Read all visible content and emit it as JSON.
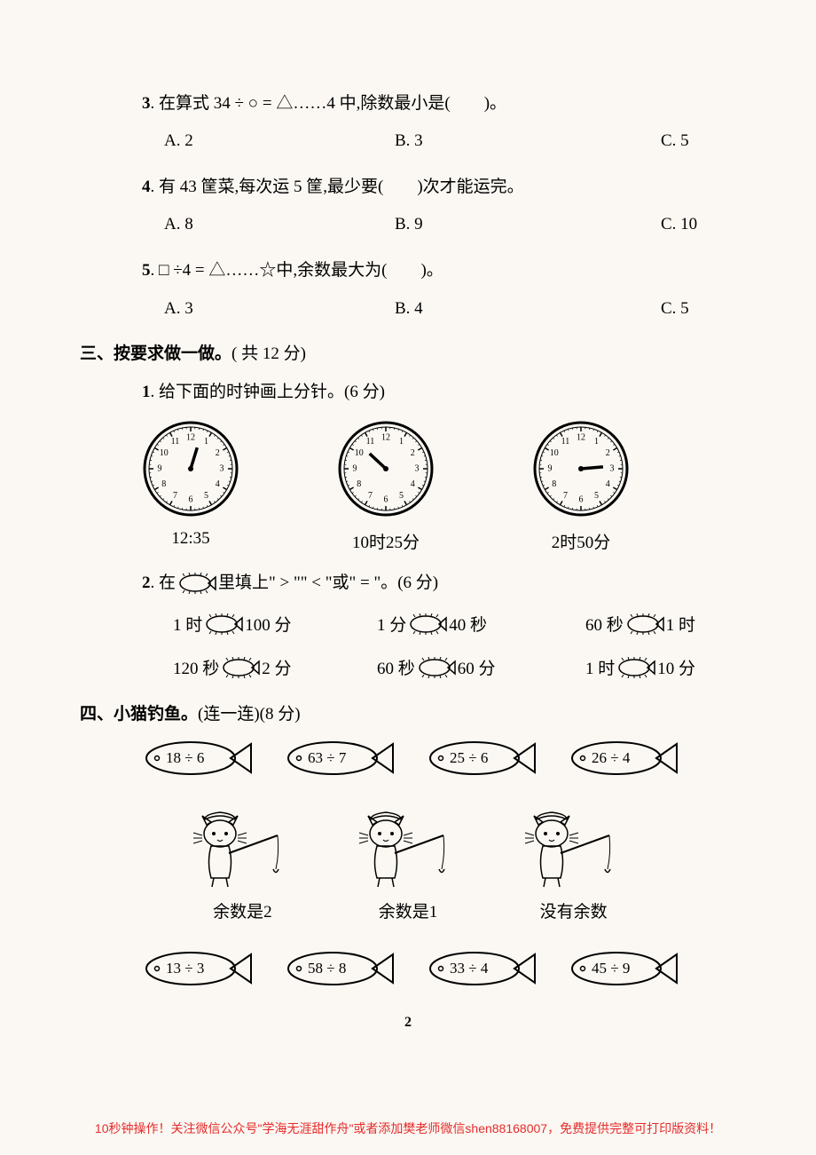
{
  "q3": {
    "num": "3",
    "text": ". 在算式 34 ÷ ○ = △……4 中,除数最小是(　　)。",
    "choices": [
      "A. 2",
      "B. 3",
      "C. 5"
    ]
  },
  "q4": {
    "num": "4",
    "text": ". 有 43 筐菜,每次运 5 筐,最少要(　　)次才能运完。",
    "choices": [
      "A. 8",
      "B. 9",
      "C. 10"
    ]
  },
  "q5": {
    "num": "5",
    "text": ". □ ÷4 = △……☆中,余数最大为(　　)。",
    "choices": [
      "A. 3",
      "B. 4",
      "C. 5"
    ]
  },
  "section3": {
    "title": "三、按要求做一做。",
    "points": "( 共 12 分)"
  },
  "s3q1": {
    "num": "1",
    "text": ". 给下面的时钟画上分针。(6 分)",
    "clocks": [
      {
        "label": "12:35",
        "hour_angle": 17
      },
      {
        "label": "10时25分",
        "hour_angle": -47
      },
      {
        "label": "2时50分",
        "hour_angle": 85
      }
    ]
  },
  "s3q2": {
    "num": "2",
    "prefix": ". 在",
    "suffix": "里填上\" > \"\" < \"或\" = \"。(6 分)",
    "rows": [
      [
        {
          "left": "1 时",
          "right": "100 分"
        },
        {
          "left": "1 分",
          "right": "40 秒"
        },
        {
          "left": "60 秒",
          "right": "1 时"
        }
      ],
      [
        {
          "left": "120 秒",
          "right": "2 分"
        },
        {
          "left": "60 秒",
          "right": "60 分"
        },
        {
          "left": "1 时",
          "right": "10 分"
        }
      ]
    ]
  },
  "section4": {
    "title": "四、小猫钓鱼。",
    "points": "(连一连)(8 分)"
  },
  "fish_top": [
    "18 ÷ 6",
    "63 ÷ 7",
    "25 ÷ 6",
    "26 ÷ 4"
  ],
  "cats": [
    "余数是2",
    "余数是1",
    "没有余数"
  ],
  "fish_bottom": [
    "13 ÷ 3",
    "58 ÷ 8",
    "33 ÷ 4",
    "45 ÷ 9"
  ],
  "page_number": "2",
  "footer": "10秒钟操作！关注微信公众号\"学海无涯甜作舟\"或者添加樊老师微信shen88168007，免费提供完整可打印版资料！",
  "colors": {
    "bg": "#fbf8f3",
    "text": "#000000",
    "footer": "#e62b2b"
  }
}
